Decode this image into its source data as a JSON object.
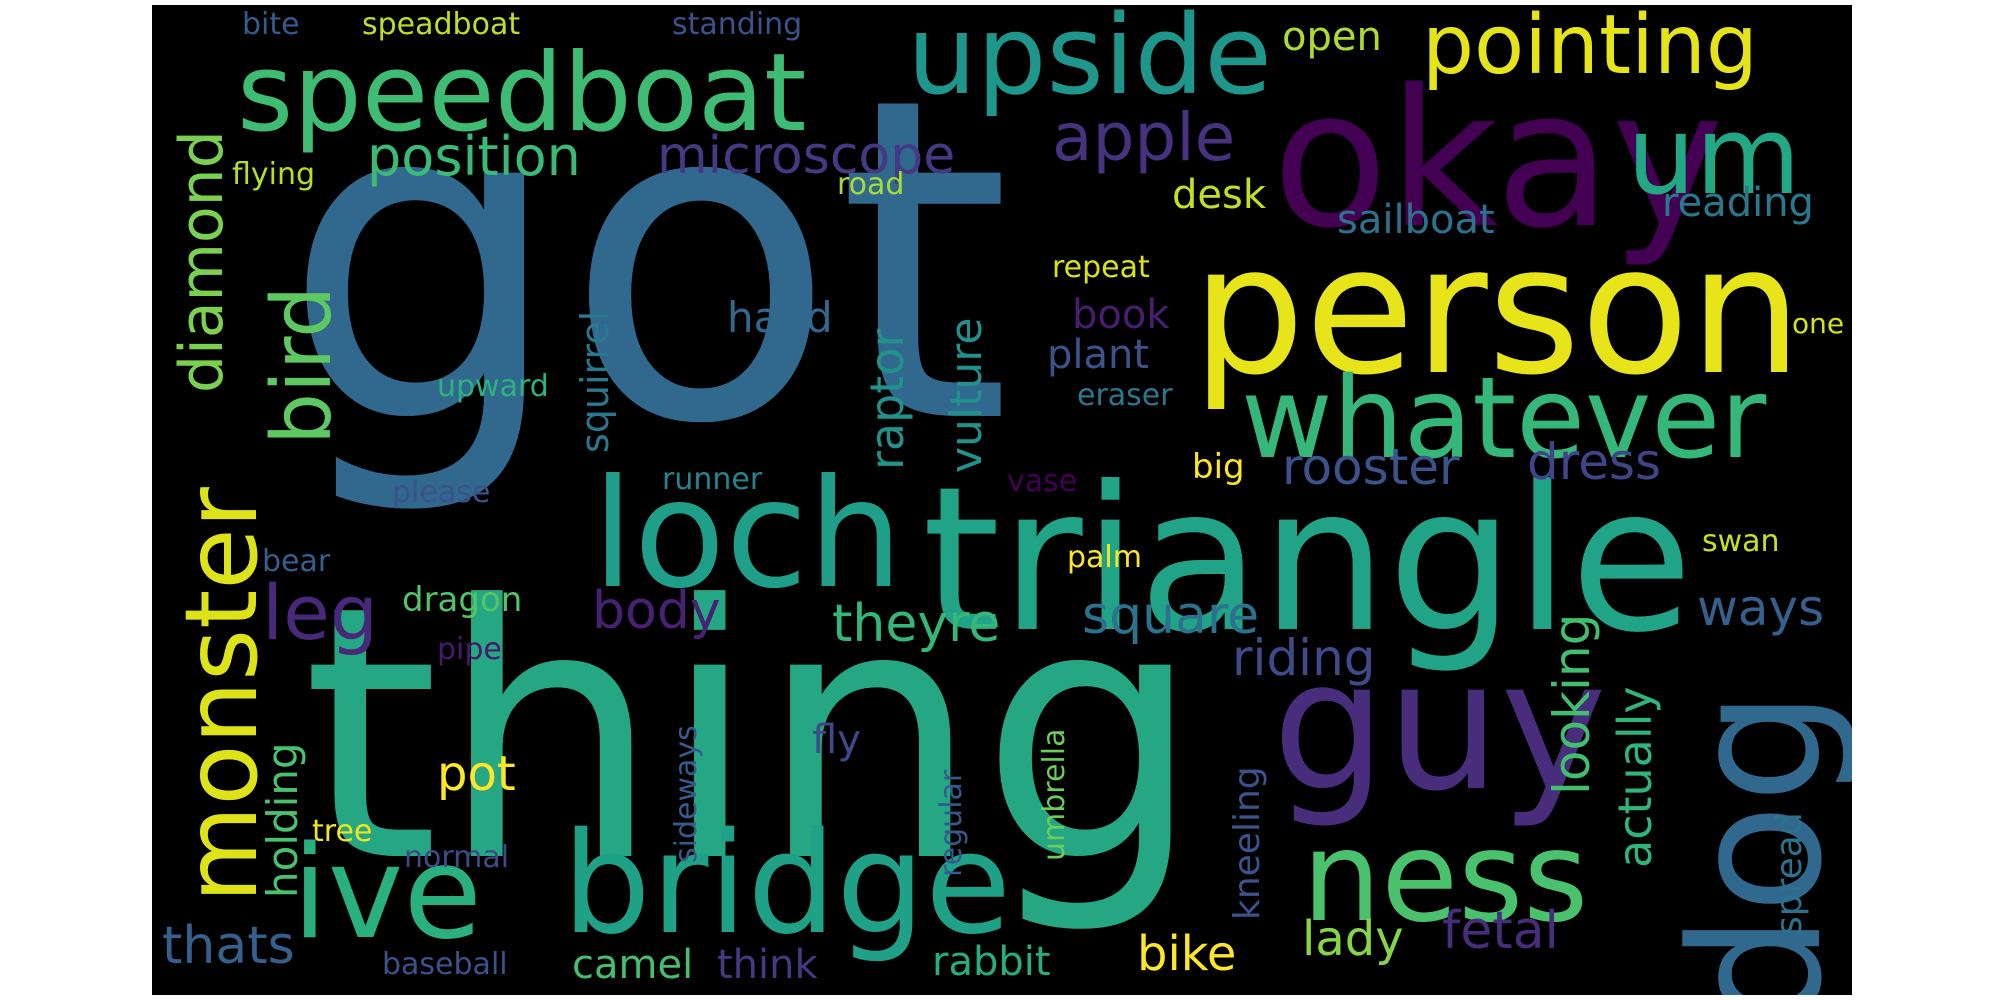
{
  "words": [
    {
      "text": "got",
      "color": "#31688e"
    },
    {
      "text": "thing",
      "color": "#26a784"
    },
    {
      "text": "triangle",
      "color": "#20a386"
    },
    {
      "text": "person",
      "color": "#e7e419"
    },
    {
      "text": "okay",
      "color": "#440154"
    },
    {
      "text": "loch",
      "color": "#1f9e89"
    },
    {
      "text": "guy",
      "color": "#472d7b"
    },
    {
      "text": "dog",
      "color": "#31688e"
    },
    {
      "text": "whatever",
      "color": "#35b779"
    },
    {
      "text": "speedboat",
      "color": "#3fbc73"
    },
    {
      "text": "ive",
      "color": "#2ab07f"
    },
    {
      "text": "bridge",
      "color": "#1fa187"
    },
    {
      "text": "ness",
      "color": "#4ac16d"
    },
    {
      "text": "upside",
      "color": "#1f968b"
    },
    {
      "text": "um",
      "color": "#22a884"
    },
    {
      "text": "monster",
      "color": "#dde318"
    },
    {
      "text": "pointing",
      "color": "#e5e419"
    },
    {
      "text": "bird",
      "color": "#5ec962"
    },
    {
      "text": "apple",
      "color": "#46327e"
    },
    {
      "text": "position",
      "color": "#3aba76"
    },
    {
      "text": "microscope",
      "color": "#443983"
    },
    {
      "text": "diamond",
      "color": "#7ad151"
    },
    {
      "text": "leg",
      "color": "#482878"
    },
    {
      "text": "rooster",
      "color": "#3b528b"
    },
    {
      "text": "dress",
      "color": "#414487"
    },
    {
      "text": "square",
      "color": "#2c728e"
    },
    {
      "text": "theyre",
      "color": "#35b779"
    },
    {
      "text": "body",
      "color": "#482173"
    },
    {
      "text": "riding",
      "color": "#3e4a89"
    },
    {
      "text": "ways",
      "color": "#355f8d"
    },
    {
      "text": "raptor",
      "color": "#20928c"
    },
    {
      "text": "vulture",
      "color": "#21918c"
    },
    {
      "text": "looking",
      "color": "#42be71"
    },
    {
      "text": "actually",
      "color": "#2fb47c"
    },
    {
      "text": "holding",
      "color": "#4ac16d"
    },
    {
      "text": "squirrel",
      "color": "#2a788e"
    },
    {
      "text": "hand",
      "color": "#31688e"
    },
    {
      "text": "desk",
      "color": "#c2df23"
    },
    {
      "text": "open",
      "color": "#addc30"
    },
    {
      "text": "sailboat",
      "color": "#2c728e"
    },
    {
      "text": "reading",
      "color": "#2a788e"
    },
    {
      "text": "book",
      "color": "#481f70"
    },
    {
      "text": "plant",
      "color": "#3b528b"
    },
    {
      "text": "pot",
      "color": "#fde725"
    },
    {
      "text": "bike",
      "color": "#fde725"
    },
    {
      "text": "lady",
      "color": "#86d549"
    },
    {
      "text": "fetal",
      "color": "#472d7b"
    },
    {
      "text": "thats",
      "color": "#355f8d"
    },
    {
      "text": "camel",
      "color": "#44bf70"
    },
    {
      "text": "think",
      "color": "#443a83"
    },
    {
      "text": "rabbit",
      "color": "#27ad81"
    },
    {
      "text": "fly",
      "color": "#3e4989"
    },
    {
      "text": "kneeling",
      "color": "#3b528b"
    },
    {
      "text": "spread",
      "color": "#2c728e"
    },
    {
      "text": "big",
      "color": "#fde725"
    },
    {
      "text": "flying",
      "color": "#b5de2b"
    },
    {
      "text": "road",
      "color": "#a5db36"
    },
    {
      "text": "repeat",
      "color": "#d8e219"
    },
    {
      "text": "upward",
      "color": "#2db27d"
    },
    {
      "text": "eraser",
      "color": "#2a788e"
    },
    {
      "text": "please",
      "color": "#3b528b"
    },
    {
      "text": "runner",
      "color": "#25848e"
    },
    {
      "text": "vase",
      "color": "#440154"
    },
    {
      "text": "bear",
      "color": "#355f8d"
    },
    {
      "text": "palm",
      "color": "#fde725"
    },
    {
      "text": "dragon",
      "color": "#52c569"
    },
    {
      "text": "pipe",
      "color": "#48186a"
    },
    {
      "text": "swan",
      "color": "#c8e020"
    },
    {
      "text": "one",
      "color": "#d2e21b"
    },
    {
      "text": "tree",
      "color": "#f1e51d"
    },
    {
      "text": "normal",
      "color": "#3e4a89"
    },
    {
      "text": "baseball",
      "color": "#3b528b"
    },
    {
      "text": "bite",
      "color": "#365c8d"
    },
    {
      "text": "speadboat",
      "color": "#bddf26"
    },
    {
      "text": "standing",
      "color": "#3b528b"
    },
    {
      "text": "sideways",
      "color": "#365c8d"
    },
    {
      "text": "regular",
      "color": "#38588c"
    },
    {
      "text": "umbrella",
      "color": "#6ccd5a"
    }
  ]
}
